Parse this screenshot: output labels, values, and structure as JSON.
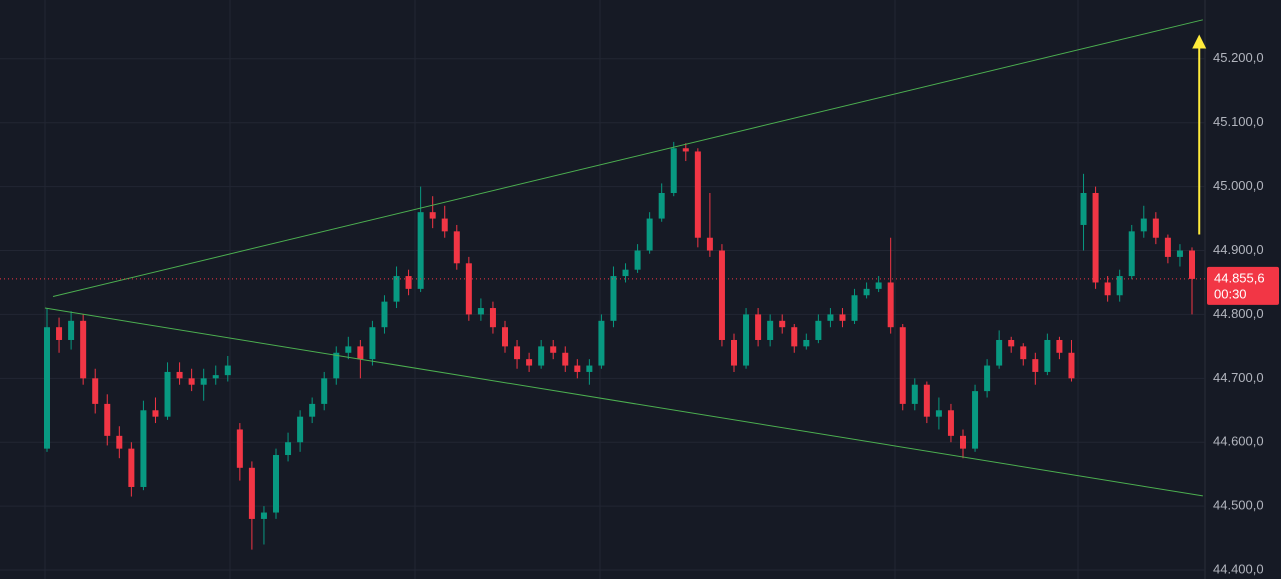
{
  "chart_data": {
    "type": "candlestick",
    "up_color": "#089981",
    "down_color": "#f23645",
    "grid": true,
    "ylim": [
      44386,
      45292
    ],
    "yticks": [
      {
        "value": 44400,
        "label": "44.400,0"
      },
      {
        "value": 44500,
        "label": "44.500,0"
      },
      {
        "value": 44600,
        "label": "44.600,0"
      },
      {
        "value": 44700,
        "label": "44.700,0"
      },
      {
        "value": 44800,
        "label": "44.800,0"
      },
      {
        "value": 44900,
        "label": "44.900,0"
      },
      {
        "value": 45000,
        "label": "45.000,0"
      },
      {
        "value": 45100,
        "label": "45.100,0"
      },
      {
        "value": 45200,
        "label": "45.200,0"
      }
    ],
    "candles": [
      [
        44590,
        44810,
        44585,
        44780
      ],
      [
        44780,
        44795,
        44740,
        44760
      ],
      [
        44760,
        44805,
        44745,
        44790
      ],
      [
        44790,
        44800,
        44690,
        44700
      ],
      [
        44700,
        44715,
        44645,
        44660
      ],
      [
        44660,
        44675,
        44595,
        44610
      ],
      [
        44610,
        44625,
        44575,
        44590
      ],
      [
        44590,
        44600,
        44515,
        44530
      ],
      [
        44530,
        44665,
        44525,
        44650
      ],
      [
        44650,
        44670,
        44630,
        44640
      ],
      [
        44640,
        44725,
        44635,
        44710
      ],
      [
        44710,
        44725,
        44690,
        44700
      ],
      [
        44700,
        44715,
        44680,
        44690
      ],
      [
        44690,
        44715,
        44665,
        44700
      ],
      [
        44700,
        44720,
        44690,
        44705
      ],
      [
        44705,
        44735,
        44695,
        44720
      ],
      [
        44620,
        44630,
        44540,
        44560
      ],
      [
        44560,
        44570,
        44432,
        44480
      ],
      [
        44480,
        44500,
        44440,
        44490
      ],
      [
        44490,
        44590,
        44480,
        44580
      ],
      [
        44580,
        44615,
        44570,
        44600
      ],
      [
        44600,
        44650,
        44585,
        44640
      ],
      [
        44640,
        44670,
        44630,
        44660
      ],
      [
        44660,
        44710,
        44650,
        44700
      ],
      [
        44700,
        44750,
        44690,
        44740
      ],
      [
        44740,
        44765,
        44730,
        44750
      ],
      [
        44750,
        44760,
        44700,
        44730
      ],
      [
        44730,
        44790,
        44720,
        44780
      ],
      [
        44780,
        44830,
        44770,
        44820
      ],
      [
        44820,
        44875,
        44810,
        44860
      ],
      [
        44860,
        44870,
        44830,
        44840
      ],
      [
        44840,
        45000,
        44835,
        44960
      ],
      [
        44960,
        44985,
        44935,
        44950
      ],
      [
        44950,
        44970,
        44920,
        44930
      ],
      [
        44930,
        44940,
        44870,
        44880
      ],
      [
        44880,
        44890,
        44790,
        44800
      ],
      [
        44800,
        44825,
        44790,
        44810
      ],
      [
        44810,
        44820,
        44770,
        44780
      ],
      [
        44780,
        44790,
        44740,
        44750
      ],
      [
        44750,
        44760,
        44715,
        44730
      ],
      [
        44730,
        44740,
        44710,
        44720
      ],
      [
        44720,
        44760,
        44715,
        44750
      ],
      [
        44750,
        44760,
        44730,
        44740
      ],
      [
        44740,
        44750,
        44710,
        44720
      ],
      [
        44720,
        44730,
        44700,
        44710
      ],
      [
        44710,
        44730,
        44690,
        44720
      ],
      [
        44720,
        44800,
        44715,
        44790
      ],
      [
        44790,
        44875,
        44780,
        44860
      ],
      [
        44860,
        44880,
        44850,
        44870
      ],
      [
        44870,
        44910,
        44865,
        44900
      ],
      [
        44900,
        44960,
        44895,
        44950
      ],
      [
        44950,
        45005,
        44945,
        44990
      ],
      [
        44990,
        45070,
        44985,
        45060
      ],
      [
        45060,
        45068,
        45040,
        45055
      ],
      [
        45055,
        45060,
        44905,
        44920
      ],
      [
        44920,
        44990,
        44890,
        44900
      ],
      [
        44900,
        44910,
        44750,
        44760
      ],
      [
        44760,
        44770,
        44710,
        44720
      ],
      [
        44720,
        44810,
        44715,
        44800
      ],
      [
        44800,
        44810,
        44750,
        44760
      ],
      [
        44760,
        44800,
        44750,
        44790
      ],
      [
        44790,
        44800,
        44770,
        44780
      ],
      [
        44780,
        44785,
        44740,
        44750
      ],
      [
        44750,
        44770,
        44745,
        44760
      ],
      [
        44760,
        44800,
        44755,
        44790
      ],
      [
        44790,
        44810,
        44780,
        44800
      ],
      [
        44800,
        44810,
        44780,
        44790
      ],
      [
        44790,
        44840,
        44785,
        44830
      ],
      [
        44830,
        44850,
        44825,
        44840
      ],
      [
        44840,
        44860,
        44835,
        44850
      ],
      [
        44850,
        44920,
        44770,
        44780
      ],
      [
        44780,
        44785,
        44650,
        44660
      ],
      [
        44660,
        44700,
        44650,
        44690
      ],
      [
        44690,
        44695,
        44630,
        44640
      ],
      [
        44640,
        44670,
        44620,
        44650
      ],
      [
        44650,
        44660,
        44600,
        44610
      ],
      [
        44610,
        44620,
        44575,
        44590
      ],
      [
        44590,
        44690,
        44585,
        44680
      ],
      [
        44680,
        44730,
        44670,
        44720
      ],
      [
        44720,
        44775,
        44715,
        44760
      ],
      [
        44760,
        44765,
        44740,
        44750
      ],
      [
        44750,
        44755,
        44720,
        44730
      ],
      [
        44730,
        44740,
        44690,
        44710
      ],
      [
        44710,
        44770,
        44705,
        44760
      ],
      [
        44760,
        44765,
        44730,
        44740
      ],
      [
        44740,
        44760,
        44695,
        44700
      ],
      [
        44940,
        45020,
        44900,
        44990
      ],
      [
        44990,
        45000,
        44840,
        44850
      ],
      [
        44850,
        44860,
        44820,
        44830
      ],
      [
        44830,
        44870,
        44820,
        44860
      ],
      [
        44860,
        44940,
        44855,
        44930
      ],
      [
        44930,
        44970,
        44920,
        44950
      ],
      [
        44950,
        44960,
        44910,
        44920
      ],
      [
        44920,
        44925,
        44880,
        44890
      ],
      [
        44890,
        44910,
        44875,
        44900
      ],
      [
        44900,
        44905,
        44800,
        44855.6
      ]
    ],
    "trendlines": [
      {
        "from": [
          0.5,
          44828
        ],
        "to": [
          95.9,
          45261
        ],
        "color": "#4caf50"
      },
      {
        "from": [
          -0.17,
          44810
        ],
        "to": [
          95.9,
          44516
        ],
        "color": "#4caf50"
      }
    ],
    "arrow": {
      "at": 95.6,
      "from": 44925,
      "to": 45238,
      "color": "#ffeb3b"
    },
    "last_price": {
      "value": 44855.6,
      "label": "44.855,6"
    },
    "countdown": "00:30"
  }
}
